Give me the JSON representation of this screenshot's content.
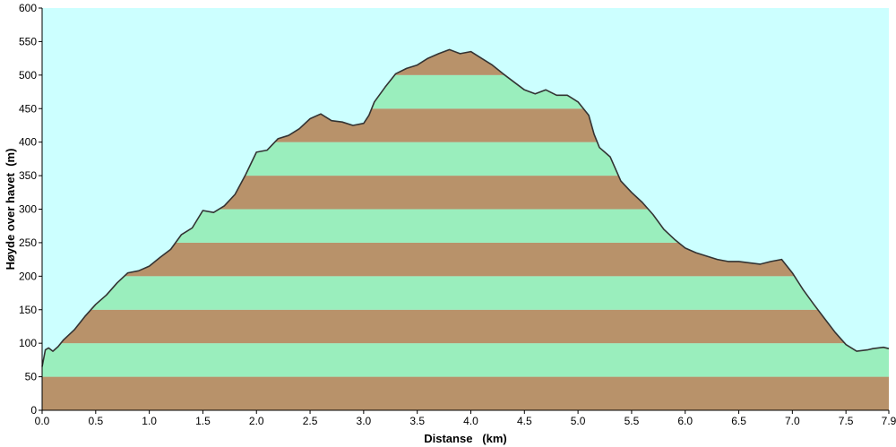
{
  "chart_data": {
    "type": "area",
    "title": "",
    "xlabel": "Distanse   (km)",
    "ylabel": "Høyde over havet  (m)",
    "xlim": [
      0,
      7.9
    ],
    "ylim": [
      0,
      600
    ],
    "x_ticks": [
      "0.0",
      "0.5",
      "1.0",
      "1.5",
      "2.0",
      "2.5",
      "3.0",
      "3.5",
      "4.0",
      "4.5",
      "5.0",
      "5.5",
      "6.0",
      "6.5",
      "7.0",
      "7.5",
      "7.9"
    ],
    "y_ticks": [
      "0",
      "50",
      "100",
      "150",
      "200",
      "250",
      "300",
      "350",
      "400",
      "450",
      "500",
      "550",
      "600"
    ],
    "grid": false,
    "legend": "none",
    "band_colors": [
      "#b8926a",
      "#9aeebd"
    ],
    "background_color": "#ccffff",
    "line_color": "#333333",
    "series": [
      {
        "x": [
          0.0,
          0.03,
          0.06,
          0.1,
          0.15,
          0.2,
          0.3,
          0.4,
          0.5,
          0.6,
          0.7,
          0.8,
          0.9,
          1.0,
          1.1,
          1.2,
          1.3,
          1.4,
          1.5,
          1.6,
          1.7,
          1.8,
          1.9,
          2.0,
          2.1,
          2.2,
          2.3,
          2.4,
          2.5,
          2.6,
          2.7,
          2.8,
          2.9,
          3.0,
          3.05,
          3.1,
          3.2,
          3.3,
          3.4,
          3.5,
          3.6,
          3.7,
          3.8,
          3.9,
          4.0,
          4.1,
          4.2,
          4.3,
          4.4,
          4.5,
          4.6,
          4.7,
          4.8,
          4.9,
          5.0,
          5.1,
          5.15,
          5.2,
          5.25,
          5.3,
          5.4,
          5.5,
          5.6,
          5.7,
          5.8,
          5.9,
          6.0,
          6.1,
          6.2,
          6.3,
          6.4,
          6.5,
          6.6,
          6.7,
          6.8,
          6.9,
          7.0,
          7.1,
          7.2,
          7.3,
          7.4,
          7.5,
          7.6,
          7.7,
          7.75,
          7.8,
          7.85,
          7.9
        ],
        "y": [
          65,
          90,
          93,
          88,
          95,
          105,
          120,
          140,
          158,
          172,
          190,
          205,
          208,
          215,
          228,
          240,
          262,
          272,
          298,
          295,
          305,
          322,
          352,
          385,
          388,
          405,
          410,
          420,
          435,
          442,
          432,
          430,
          425,
          428,
          440,
          460,
          482,
          502,
          510,
          515,
          525,
          532,
          538,
          532,
          535,
          525,
          515,
          502,
          490,
          478,
          472,
          478,
          470,
          470,
          460,
          440,
          412,
          392,
          385,
          378,
          342,
          325,
          310,
          292,
          270,
          255,
          242,
          235,
          230,
          225,
          222,
          222,
          220,
          218,
          222,
          225,
          205,
          180,
          158,
          137,
          116,
          98,
          88,
          90,
          92,
          93,
          94,
          92
        ],
        "band_step": 50
      }
    ]
  }
}
